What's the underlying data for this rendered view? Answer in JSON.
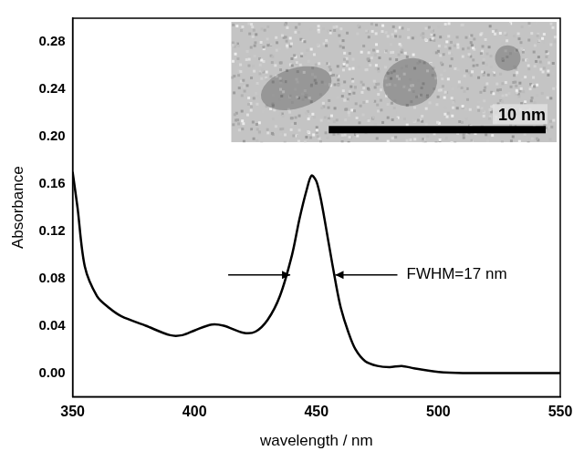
{
  "chart_data": {
    "type": "line",
    "x_label": "wavelength / nm",
    "y_label": "Absorbance",
    "x": [
      350,
      352,
      355,
      360,
      365,
      370,
      380,
      390,
      395,
      400,
      407,
      412,
      420,
      425,
      430,
      435,
      440,
      443,
      446,
      448,
      450,
      452,
      455,
      458,
      460,
      463,
      466,
      470,
      475,
      480,
      485,
      490,
      500,
      510,
      530,
      550
    ],
    "values": [
      0.17,
      0.14,
      0.09,
      0.065,
      0.055,
      0.048,
      0.04,
      0.032,
      0.032,
      0.036,
      0.041,
      0.04,
      0.034,
      0.035,
      0.045,
      0.065,
      0.1,
      0.13,
      0.155,
      0.167,
      0.162,
      0.145,
      0.11,
      0.075,
      0.055,
      0.035,
      0.02,
      0.01,
      0.006,
      0.005,
      0.006,
      0.004,
      0.001,
      0.0,
      0.0,
      0.0
    ],
    "color": "#000000",
    "xlim": [
      350,
      550
    ],
    "xticks": [
      350,
      400,
      450,
      500,
      550
    ],
    "ylim": [
      -0.02,
      0.3
    ],
    "yticks": [
      {
        "value": 0,
        "label": "0.00"
      },
      {
        "value": 0.04,
        "label": "0.04"
      },
      {
        "value": 0.08,
        "label": "0.08"
      },
      {
        "value": 0.12,
        "label": "0.12"
      },
      {
        "value": 0.16,
        "label": "0.16"
      },
      {
        "value": 0.2,
        "label": "0.20"
      },
      {
        "value": 0.24,
        "label": "0.24"
      },
      {
        "value": 0.28,
        "label": "0.28"
      }
    ],
    "grid": false,
    "annotations": [
      {
        "text": "FWHM=17 nm",
        "x": [
          440,
          457
        ],
        "y": 0.083
      }
    ],
    "inset": {
      "scale_bar": "10 nm"
    }
  }
}
